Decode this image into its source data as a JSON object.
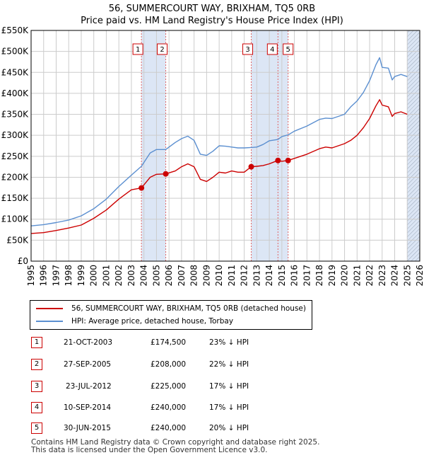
{
  "header": {
    "title_line1": "56, SUMMERCOURT WAY, BRIXHAM, TQ5 0RB",
    "title_line2": "Price paid vs. HM Land Registry's House Price Index (HPI)"
  },
  "colors": {
    "property": "#cc0000",
    "hpi": "#5b8fd0",
    "shade": "#dce6f5",
    "grid": "#cccccc",
    "marker_border": "#cc0000"
  },
  "chart_data": {
    "type": "line",
    "xlim": [
      1995,
      2026
    ],
    "ylim": [
      0,
      550000
    ],
    "x_ticks": [
      1995,
      1996,
      1997,
      1998,
      1999,
      2000,
      2001,
      2002,
      2003,
      2004,
      2005,
      2006,
      2007,
      2008,
      2009,
      2010,
      2011,
      2012,
      2013,
      2014,
      2015,
      2016,
      2017,
      2018,
      2019,
      2020,
      2021,
      2022,
      2023,
      2024,
      2025,
      2026
    ],
    "y_ticks": [
      {
        "value": 0,
        "label": "£0"
      },
      {
        "value": 50000,
        "label": "£50K"
      },
      {
        "value": 100000,
        "label": "£100K"
      },
      {
        "value": 150000,
        "label": "£150K"
      },
      {
        "value": 200000,
        "label": "£200K"
      },
      {
        "value": 250000,
        "label": "£250K"
      },
      {
        "value": 300000,
        "label": "£300K"
      },
      {
        "value": 350000,
        "label": "£350K"
      },
      {
        "value": 400000,
        "label": "£400K"
      },
      {
        "value": 450000,
        "label": "£450K"
      },
      {
        "value": 500000,
        "label": "£500K"
      },
      {
        "value": 550000,
        "label": "£550K"
      }
    ],
    "grid": true,
    "shaded_ranges": [
      [
        2003.8,
        2005.74
      ],
      [
        2012.56,
        2015.5
      ],
      [
        2025.0,
        2026.0
      ]
    ],
    "hatched_range": [
      2025.0,
      2026.0
    ],
    "series": [
      {
        "name": "56, SUMMERCOURT WAY, BRIXHAM, TQ5 0RB (detached house)",
        "color": "#cc0000",
        "x": [
          1995.0,
          1996.0,
          1997.0,
          1998.0,
          1999.0,
          2000.0,
          2001.0,
          2002.0,
          2003.0,
          2003.8,
          2004.5,
          2005.0,
          2005.74,
          2006.5,
          2007.0,
          2007.5,
          2008.0,
          2008.5,
          2009.0,
          2009.5,
          2010.0,
          2010.5,
          2011.0,
          2011.5,
          2012.0,
          2012.56,
          2013.0,
          2013.5,
          2014.0,
          2014.69,
          2015.0,
          2015.5,
          2016.0,
          2017.0,
          2018.0,
          2018.5,
          2019.0,
          2020.0,
          2020.5,
          2021.0,
          2021.5,
          2022.0,
          2022.5,
          2022.8,
          2023.0,
          2023.5,
          2023.8,
          2024.0,
          2024.5,
          2025.0
        ],
        "values": [
          66000,
          68000,
          73000,
          79000,
          86000,
          102000,
          122000,
          148000,
          170000,
          174500,
          200000,
          207000,
          208000,
          215000,
          225000,
          232000,
          225000,
          195000,
          190000,
          200000,
          212000,
          210000,
          215000,
          212000,
          212000,
          225000,
          226000,
          228000,
          232000,
          240000,
          238000,
          240000,
          245000,
          255000,
          268000,
          272000,
          270000,
          280000,
          288000,
          300000,
          318000,
          340000,
          370000,
          385000,
          372000,
          368000,
          345000,
          352000,
          356000,
          350000
        ]
      },
      {
        "name": "HPI: Average price, detached house, Torbay",
        "color": "#5b8fd0",
        "x": [
          1995.0,
          1996.0,
          1997.0,
          1998.0,
          1999.0,
          2000.0,
          2001.0,
          2002.0,
          2003.0,
          2003.8,
          2004.5,
          2005.0,
          2005.74,
          2006.5,
          2007.0,
          2007.5,
          2008.0,
          2008.5,
          2009.0,
          2009.5,
          2010.0,
          2010.5,
          2011.0,
          2011.5,
          2012.0,
          2012.56,
          2013.0,
          2013.5,
          2014.0,
          2014.69,
          2015.0,
          2015.5,
          2016.0,
          2017.0,
          2018.0,
          2018.5,
          2019.0,
          2020.0,
          2020.5,
          2021.0,
          2021.5,
          2022.0,
          2022.5,
          2022.8,
          2023.0,
          2023.5,
          2023.8,
          2024.0,
          2024.5,
          2025.0
        ],
        "values": [
          84000,
          87000,
          92000,
          98000,
          108000,
          125000,
          148000,
          178000,
          205000,
          226000,
          258000,
          266000,
          266000,
          283000,
          292000,
          298000,
          288000,
          255000,
          252000,
          262000,
          275000,
          274000,
          272000,
          270000,
          270000,
          271000,
          272000,
          278000,
          287000,
          290000,
          297000,
          301000,
          310000,
          322000,
          338000,
          341000,
          340000,
          350000,
          368000,
          382000,
          402000,
          430000,
          468000,
          485000,
          462000,
          460000,
          432000,
          440000,
          445000,
          440000
        ]
      }
    ],
    "sale_markers": [
      {
        "n": "1",
        "x": 2003.8,
        "value": 174500
      },
      {
        "n": "2",
        "x": 2005.74,
        "value": 208000
      },
      {
        "n": "3",
        "x": 2012.56,
        "value": 225000
      },
      {
        "n": "4",
        "x": 2014.69,
        "value": 240000
      },
      {
        "n": "5",
        "x": 2015.5,
        "value": 240000
      }
    ]
  },
  "legend": {
    "property_label": "56, SUMMERCOURT WAY, BRIXHAM, TQ5 0RB (detached house)",
    "hpi_label": "HPI: Average price, detached house, Torbay"
  },
  "sales": [
    {
      "n": "1",
      "date": "21-OCT-2003",
      "price": "£174,500",
      "hpi": "23% ↓ HPI"
    },
    {
      "n": "2",
      "date": "27-SEP-2005",
      "price": "£208,000",
      "hpi": "22% ↓ HPI"
    },
    {
      "n": "3",
      "date": "23-JUL-2012",
      "price": "£225,000",
      "hpi": "17% ↓ HPI"
    },
    {
      "n": "4",
      "date": "10-SEP-2014",
      "price": "£240,000",
      "hpi": "17% ↓ HPI"
    },
    {
      "n": "5",
      "date": "30-JUN-2015",
      "price": "£240,000",
      "hpi": "20% ↓ HPI"
    }
  ],
  "footer": {
    "line1": "Contains HM Land Registry data © Crown copyright and database right 2025.",
    "line2": "This data is licensed under the Open Government Licence v3.0."
  }
}
